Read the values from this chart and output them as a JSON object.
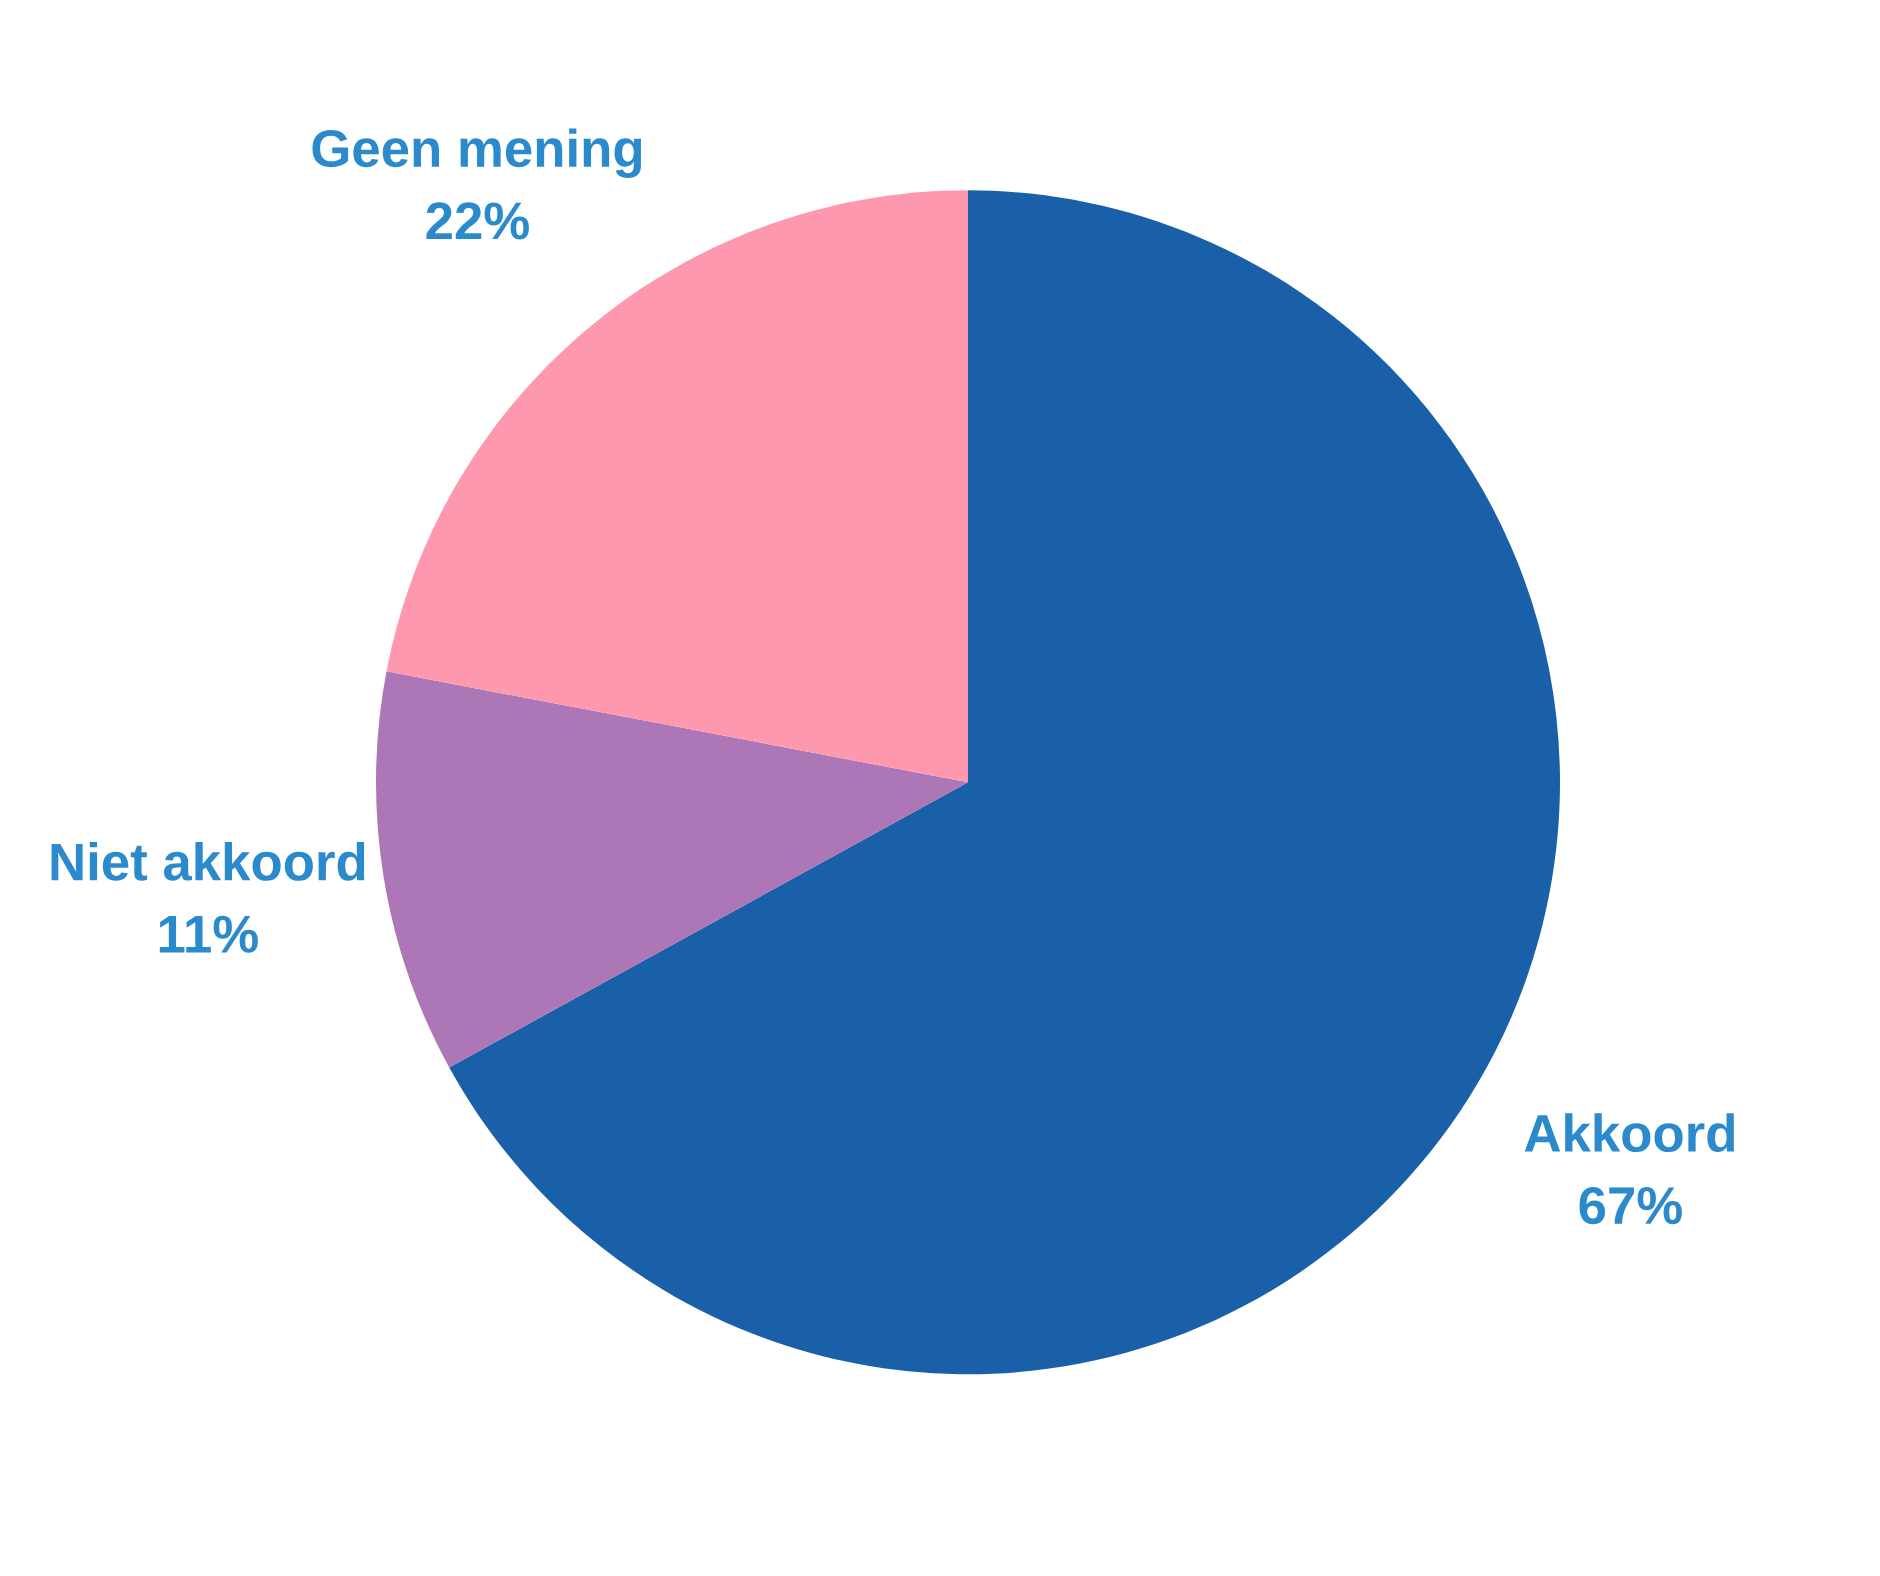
{
  "chart_data": {
    "type": "pie",
    "categories": [
      "Akkoord",
      "Niet akkoord",
      "Geen mening"
    ],
    "values": [
      67,
      11,
      22
    ],
    "colors": [
      "#1a60a8",
      "#ad76b7",
      "#fe98ae"
    ],
    "value_labels": [
      "67%",
      "11%",
      "22%"
    ]
  }
}
